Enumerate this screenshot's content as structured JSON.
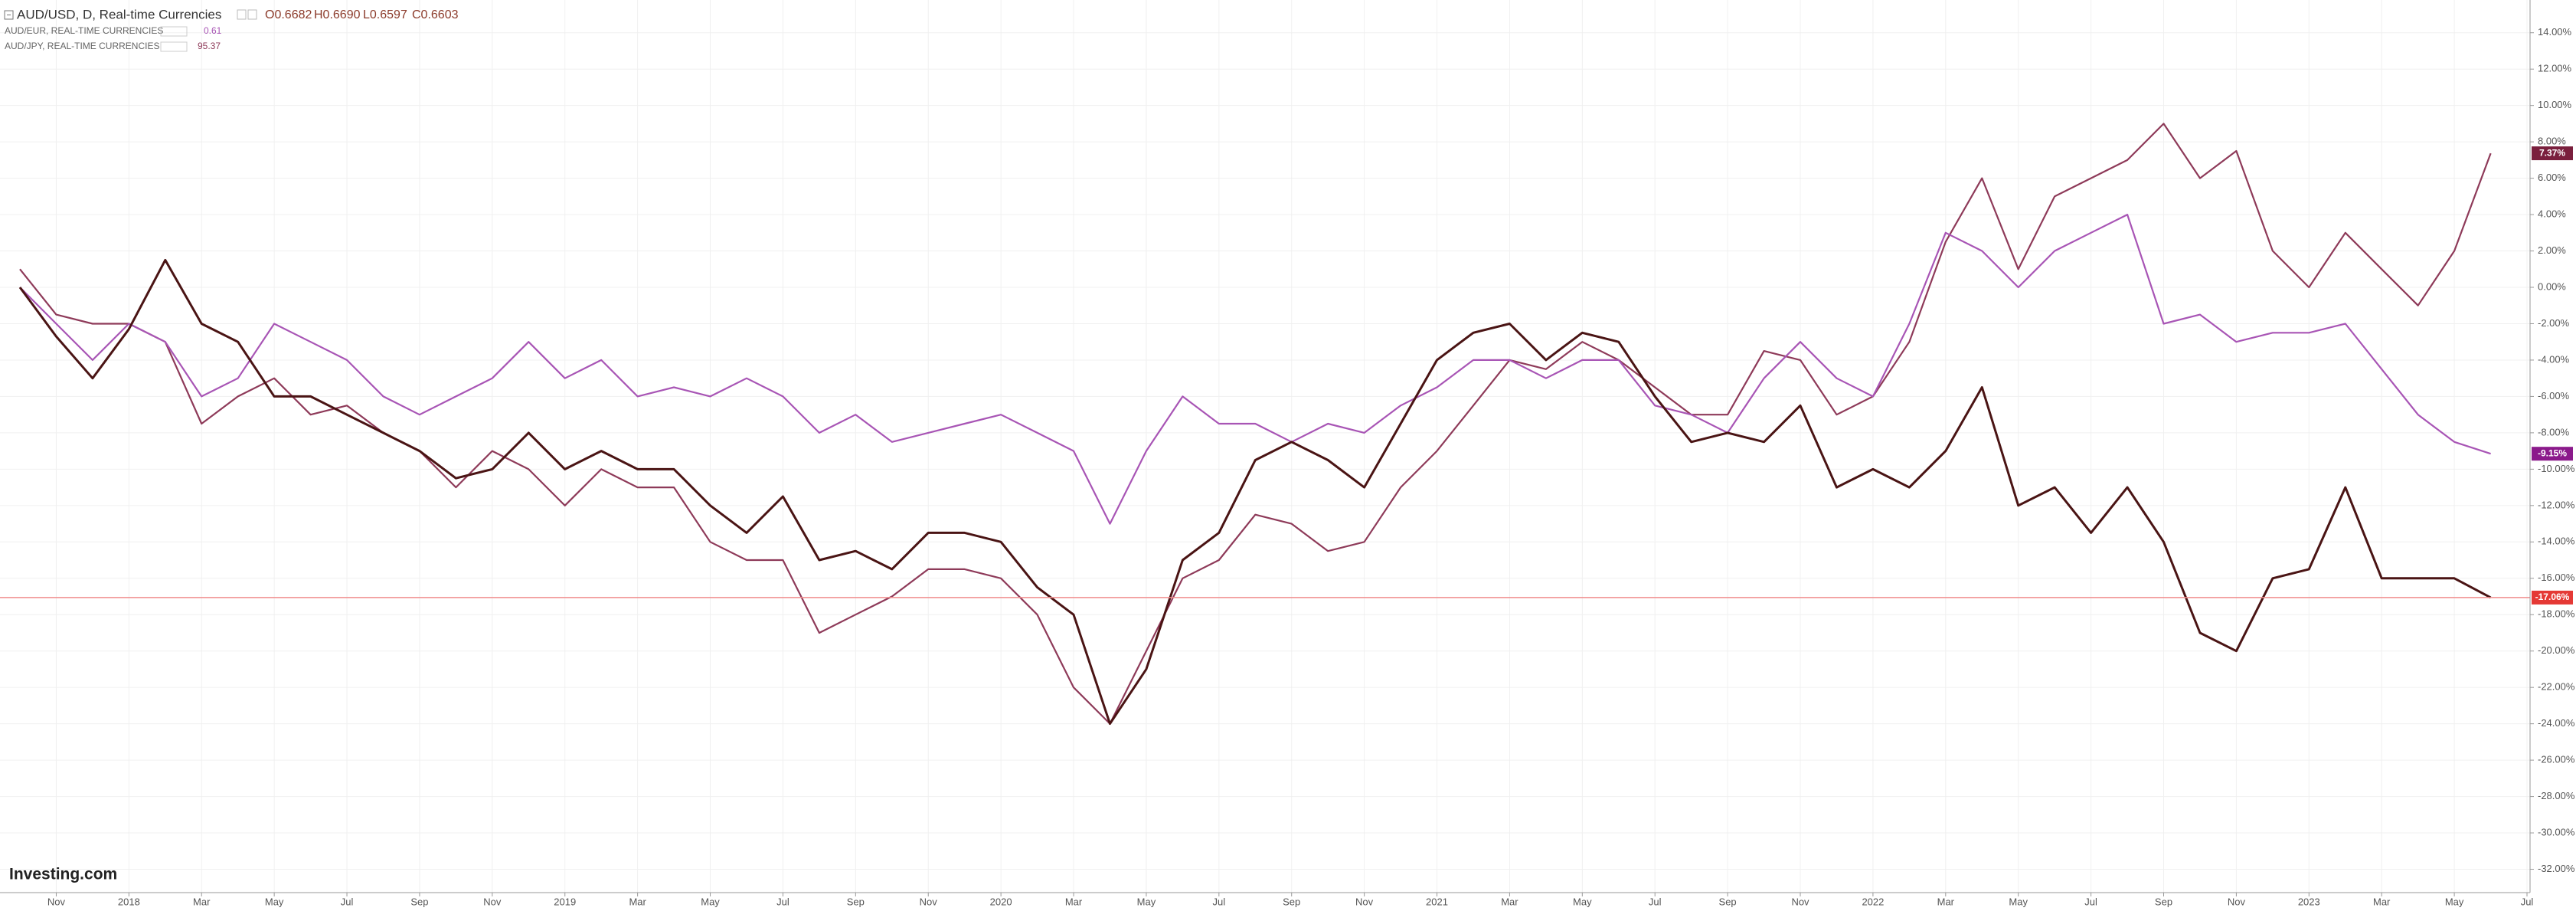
{
  "header": {
    "title": "AUD/USD, D, Real-time Currencies",
    "open": "O0.6682",
    "high": "H0.6690",
    "low": "L0.6597",
    "close": "C0.6603"
  },
  "legend": [
    {
      "name": "AUD/EUR, REAL-TIME CURRENCIES",
      "value": "0.61"
    },
    {
      "name": "AUD/JPY, REAL-TIME CURRENCIES",
      "value": "95.37"
    }
  ],
  "logo": "Investing.com",
  "chart_data": {
    "type": "line",
    "x": [
      "2017-10",
      "2017-11",
      "2017-12",
      "2018-01",
      "2018-02",
      "2018-03",
      "2018-04",
      "2018-05",
      "2018-06",
      "2018-07",
      "2018-08",
      "2018-09",
      "2018-10",
      "2018-11",
      "2018-12",
      "2019-01",
      "2019-02",
      "2019-03",
      "2019-04",
      "2019-05",
      "2019-06",
      "2019-07",
      "2019-08",
      "2019-09",
      "2019-10",
      "2019-11",
      "2019-12",
      "2020-01",
      "2020-02",
      "2020-03",
      "2020-04",
      "2020-05",
      "2020-06",
      "2020-07",
      "2020-08",
      "2020-09",
      "2020-10",
      "2020-11",
      "2020-12",
      "2021-01",
      "2021-02",
      "2021-03",
      "2021-04",
      "2021-05",
      "2021-06",
      "2021-07",
      "2021-08",
      "2021-09",
      "2021-10",
      "2021-11",
      "2021-12",
      "2022-01",
      "2022-02",
      "2022-03",
      "2022-04",
      "2022-05",
      "2022-06",
      "2022-07",
      "2022-08",
      "2022-09",
      "2022-10",
      "2022-11",
      "2022-12",
      "2023-01",
      "2023-02",
      "2023-03",
      "2023-04",
      "2023-05",
      "2023-06"
    ],
    "series": [
      {
        "name": "AUD/USD",
        "color": "#4a1414",
        "last_color": "#e53935",
        "last_label": "-17.06%",
        "baseline_color": "#f08c8c",
        "values": [
          0,
          -2.7,
          -5,
          -2.3,
          1.5,
          -2,
          -3,
          -6,
          -6,
          -7,
          -8,
          -9,
          -10.5,
          -10,
          -8,
          -10,
          -9,
          -10,
          -10,
          -12,
          -13.5,
          -11.5,
          -15,
          -14.5,
          -15.5,
          -13.5,
          -13.5,
          -14,
          -16.5,
          -18,
          -24,
          -21,
          -15,
          -13.5,
          -9.5,
          -8.5,
          -9.5,
          -11,
          -7.5,
          -4,
          -2.5,
          -2,
          -4,
          -2.5,
          -3,
          -6,
          -8.5,
          -8,
          -8.5,
          -6.5,
          -11,
          -10,
          -11,
          -9,
          -5.5,
          -12,
          -11,
          -13.5,
          -11,
          -14,
          -19,
          -20,
          -16,
          -15.5,
          -11,
          -16,
          -16,
          -16,
          -17.06
        ]
      },
      {
        "name": "AUD/EUR",
        "color": "#a855b5",
        "last_color": "#8b1a8b",
        "last_label": "-9.15%",
        "values": [
          0,
          -2,
          -4,
          -2,
          -3,
          -6,
          -5,
          -2,
          -3,
          -4,
          -6,
          -7,
          -6,
          -5,
          -3,
          -5,
          -4,
          -6,
          -5.5,
          -6,
          -5,
          -6,
          -8,
          -7,
          -8.5,
          -8,
          -7.5,
          -7,
          -8,
          -9,
          -13,
          -9,
          -6,
          -7.5,
          -7.5,
          -8.5,
          -7.5,
          -8,
          -6.5,
          -5.5,
          -4,
          -4,
          -5,
          -4,
          -4,
          -6.5,
          -7,
          -8,
          -5,
          -3,
          -5,
          -6,
          -2,
          3,
          2,
          0,
          2,
          3,
          4,
          -2,
          -1.5,
          -3,
          -2.5,
          -2.5,
          -2,
          -4.5,
          -7,
          -8.5,
          -9.15
        ]
      },
      {
        "name": "AUD/JPY",
        "color": "#8e3a59",
        "last_color": "#7a1f3d",
        "last_label": "7.37%",
        "values": [
          1,
          -1.5,
          -2,
          -2,
          -3,
          -7.5,
          -6,
          -5,
          -7,
          -6.5,
          -8,
          -9,
          -11,
          -9,
          -10,
          -12,
          -10,
          -11,
          -11,
          -14,
          -15,
          -15,
          -19,
          -18,
          -17,
          -15.5,
          -15.5,
          -16,
          -18,
          -22,
          -24,
          -20,
          -16,
          -15,
          -12.5,
          -13,
          -14.5,
          -14,
          -11,
          -9,
          -6.5,
          -4,
          -4.5,
          -3,
          -4,
          -5.5,
          -7,
          -7,
          -3.5,
          -4,
          -7,
          -6,
          -3,
          2.5,
          6,
          1,
          5,
          6,
          7,
          9,
          6,
          7.5,
          2,
          0,
          3,
          1,
          -1,
          2,
          7.37
        ]
      }
    ],
    "xlim": [
      "2017-10",
      "2023-07"
    ],
    "xticks": [
      {
        "value": "2017-11",
        "label": "Nov"
      },
      {
        "value": "2018-01",
        "label": "2018"
      },
      {
        "value": "2018-03",
        "label": "Mar"
      },
      {
        "value": "2018-05",
        "label": "May"
      },
      {
        "value": "2018-07",
        "label": "Jul"
      },
      {
        "value": "2018-09",
        "label": "Sep"
      },
      {
        "value": "2018-11",
        "label": "Nov"
      },
      {
        "value": "2019-01",
        "label": "2019"
      },
      {
        "value": "2019-03",
        "label": "Mar"
      },
      {
        "value": "2019-05",
        "label": "May"
      },
      {
        "value": "2019-07",
        "label": "Jul"
      },
      {
        "value": "2019-09",
        "label": "Sep"
      },
      {
        "value": "2019-11",
        "label": "Nov"
      },
      {
        "value": "2020-01",
        "label": "2020"
      },
      {
        "value": "2020-03",
        "label": "Mar"
      },
      {
        "value": "2020-05",
        "label": "May"
      },
      {
        "value": "2020-07",
        "label": "Jul"
      },
      {
        "value": "2020-09",
        "label": "Sep"
      },
      {
        "value": "2020-11",
        "label": "Nov"
      },
      {
        "value": "2021-01",
        "label": "2021"
      },
      {
        "value": "2021-03",
        "label": "Mar"
      },
      {
        "value": "2021-05",
        "label": "May"
      },
      {
        "value": "2021-07",
        "label": "Jul"
      },
      {
        "value": "2021-09",
        "label": "Sep"
      },
      {
        "value": "2021-11",
        "label": "Nov"
      },
      {
        "value": "2022-01",
        "label": "2022"
      },
      {
        "value": "2022-03",
        "label": "Mar"
      },
      {
        "value": "2022-05",
        "label": "May"
      },
      {
        "value": "2022-07",
        "label": "Jul"
      },
      {
        "value": "2022-09",
        "label": "Sep"
      },
      {
        "value": "2022-11",
        "label": "Nov"
      },
      {
        "value": "2023-01",
        "label": "2023"
      },
      {
        "value": "2023-03",
        "label": "Mar"
      },
      {
        "value": "2023-05",
        "label": "May"
      },
      {
        "value": "2023-07",
        "label": "Jul"
      }
    ],
    "ylim": [
      -33.2,
      15.8
    ],
    "yticks": [
      {
        "value": 14,
        "label": "14.00%"
      },
      {
        "value": 12,
        "label": "12.00%"
      },
      {
        "value": 10,
        "label": "10.00%"
      },
      {
        "value": 8,
        "label": "8.00%"
      },
      {
        "value": 6,
        "label": "6.00%"
      },
      {
        "value": 4,
        "label": "4.00%"
      },
      {
        "value": 2,
        "label": "2.00%"
      },
      {
        "value": 0,
        "label": "0.00%"
      },
      {
        "value": -2,
        "label": "-2.00%"
      },
      {
        "value": -4,
        "label": "-4.00%"
      },
      {
        "value": -6,
        "label": "-6.00%"
      },
      {
        "value": -8,
        "label": "-8.00%"
      },
      {
        "value": -10,
        "label": "-10.00%"
      },
      {
        "value": -12,
        "label": "-12.00%"
      },
      {
        "value": -14,
        "label": "-14.00%"
      },
      {
        "value": -16,
        "label": "-16.00%"
      },
      {
        "value": -18,
        "label": "-18.00%"
      },
      {
        "value": -20,
        "label": "-20.00%"
      },
      {
        "value": -22,
        "label": "-22.00%"
      },
      {
        "value": -24,
        "label": "-24.00%"
      },
      {
        "value": -26,
        "label": "-26.00%"
      },
      {
        "value": -28,
        "label": "-28.00%"
      },
      {
        "value": -30,
        "label": "-30.00%"
      },
      {
        "value": -32,
        "label": "-32.00%"
      }
    ],
    "grid": true
  }
}
